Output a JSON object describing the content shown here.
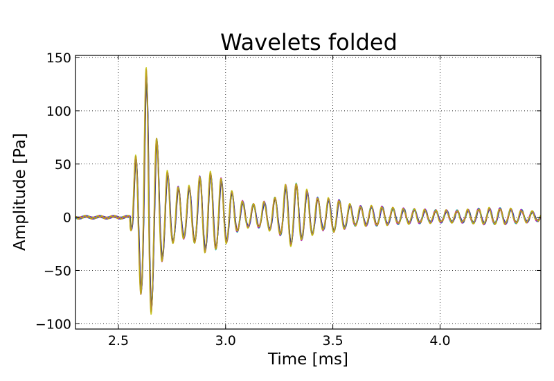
{
  "chart_data": {
    "type": "line",
    "title": "Wavelets folded",
    "xlabel": "Time [ms]",
    "ylabel": "Amplitude [Pa]",
    "xlim": [
      2.3,
      4.47
    ],
    "ylim": [
      -105,
      152
    ],
    "xticks": [
      2.5,
      3.0,
      3.5,
      4.0
    ],
    "xtick_labels": [
      "2.5",
      "3.0",
      "3.5",
      "4.0"
    ],
    "yticks": [
      -100,
      -50,
      0,
      50,
      100,
      150
    ],
    "ytick_labels": [
      "−100",
      "−50",
      "0",
      "50",
      "100",
      "150"
    ],
    "grid": true,
    "legend": "none",
    "overlay_count": 7,
    "series_colors": [
      "#000000",
      "#0000ff",
      "#008000",
      "#ff0000",
      "#00bfbf",
      "#bf00bf",
      "#bfbf00"
    ],
    "envelope": {
      "t": [
        2.3,
        2.55,
        2.58,
        2.61,
        2.64,
        2.67,
        2.7,
        2.75,
        2.8,
        2.85,
        2.9,
        2.95,
        3.0,
        3.05,
        3.1,
        3.15,
        3.2,
        3.25,
        3.3,
        3.35,
        3.4,
        3.45,
        3.5,
        3.55,
        3.6,
        3.65,
        3.7,
        3.8,
        3.9,
        4.0,
        4.1,
        4.2,
        4.3,
        4.4,
        4.47
      ],
      "amplitude": [
        1,
        1,
        55,
        100,
        150,
        80,
        55,
        32,
        25,
        30,
        42,
        40,
        32,
        18,
        12,
        12,
        15,
        20,
        35,
        28,
        22,
        15,
        18,
        14,
        10,
        10,
        10,
        8,
        7,
        6,
        6,
        8,
        8,
        6,
        4
      ]
    },
    "wave_period_ms": 0.05,
    "wave_onset_ms": 2.555
  }
}
